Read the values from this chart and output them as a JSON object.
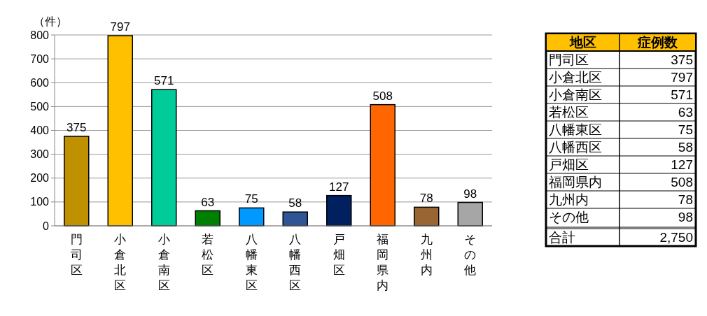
{
  "chart_data": [
    {
      "type": "bar",
      "ylabel": "（件）",
      "categories": [
        "門司区",
        "小倉北区",
        "小倉南区",
        "若松区",
        "八幡東区",
        "八幡西区",
        "戸畑区",
        "福岡県内",
        "九州内",
        "その他"
      ],
      "values": [
        375,
        797,
        571,
        63,
        75,
        58,
        127,
        508,
        78,
        98
      ],
      "colors": [
        "#bf9000",
        "#ffc000",
        "#00cc99",
        "#008000",
        "#0099ff",
        "#2f5597",
        "#002060",
        "#ff6600",
        "#996633",
        "#a6a6a6"
      ],
      "ylim": [
        0,
        800
      ],
      "yticks": [
        0,
        100,
        200,
        300,
        400,
        500,
        600,
        700,
        800
      ],
      "grid": "y",
      "data_labels": true
    },
    {
      "type": "other",
      "xlabel": "地区",
      "ylabel": "症例数",
      "color": "#ffc000",
      "categories": [
        "門司区",
        "小倉北区",
        "小倉南区",
        "若松区",
        "八幡東区",
        "八幡西区",
        "戸畑区",
        "福岡県内",
        "九州内",
        "その他",
        "合計"
      ],
      "values": [
        375,
        797,
        571,
        63,
        75,
        58,
        127,
        508,
        78,
        98,
        2750
      ],
      "value_labels": [
        "375",
        "797",
        "571",
        "63",
        "75",
        "58",
        "127",
        "508",
        "78",
        "98",
        "2,750"
      ]
    }
  ]
}
